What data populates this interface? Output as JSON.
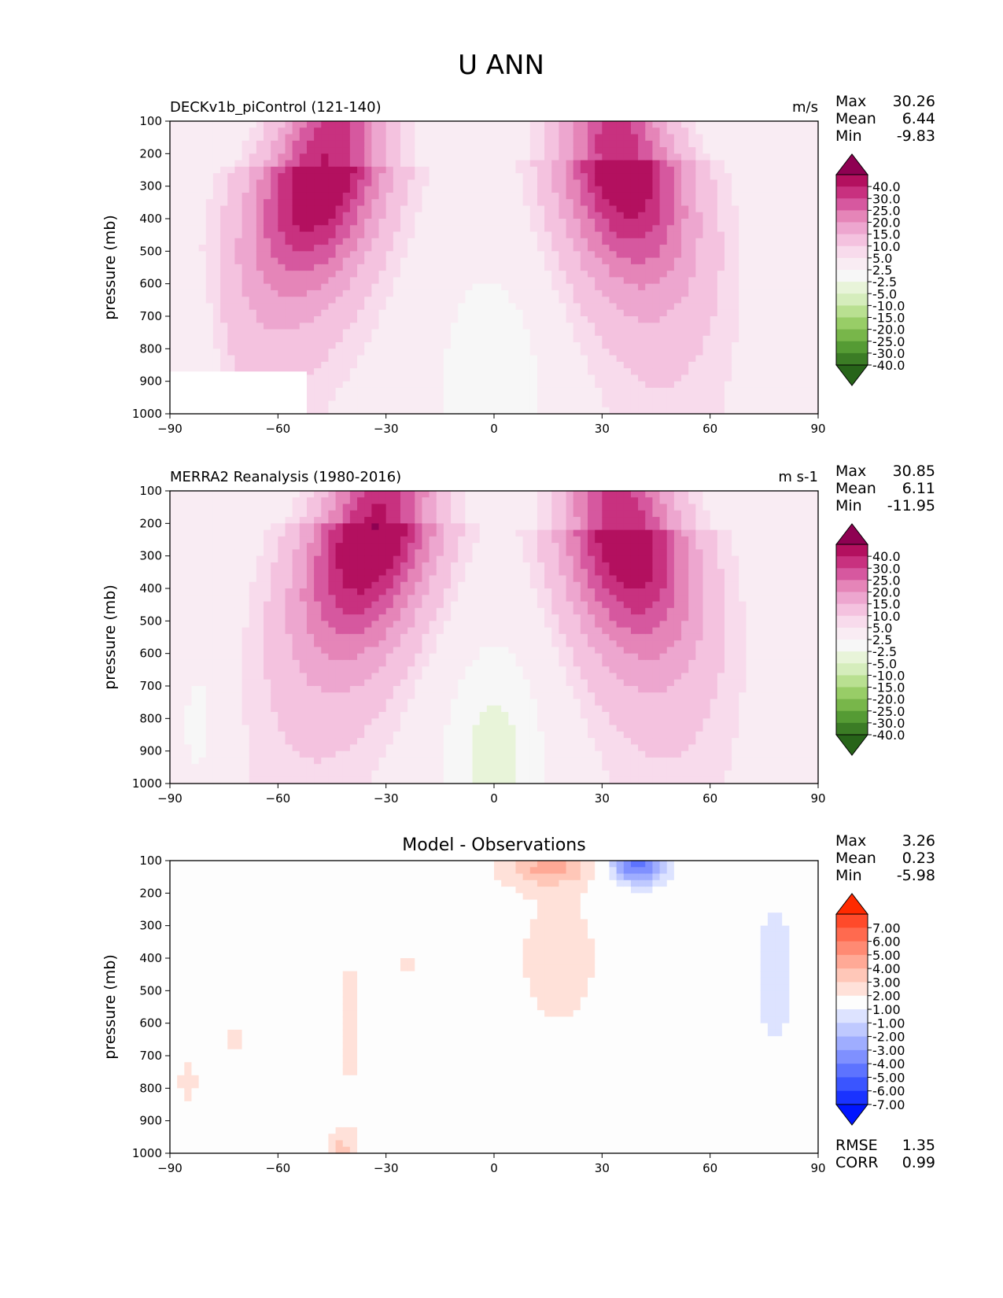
{
  "title": "U ANN",
  "chart_data": [
    {
      "type": "heatmap",
      "title": "DECKv1b_piControl (121-140)",
      "units": "m/s",
      "ylabel": "pressure (mb)",
      "xlim": [
        -90,
        90
      ],
      "ylim": [
        1000,
        100
      ],
      "x_ticks": [
        "−90",
        "−60",
        "−30",
        "0",
        "30",
        "60",
        "90"
      ],
      "y_ticks": [
        "100",
        "200",
        "300",
        "400",
        "500",
        "600",
        "700",
        "800",
        "900",
        "1000"
      ],
      "stats": [
        {
          "label": "Max",
          "value": "30.26"
        },
        {
          "label": "Mean",
          "value": "6.44"
        },
        {
          "label": "Min",
          "value": "-9.83"
        }
      ],
      "colorbar": {
        "labels": [
          "40.0",
          "30.0",
          "25.0",
          "20.0",
          "15.0",
          "10.0",
          "5.0",
          "2.5",
          "-2.5",
          "-5.0",
          "-10.0",
          "-15.0",
          "-20.0",
          "-25.0",
          "-30.0",
          "-40.0"
        ],
        "colors": [
          "#8e0152",
          "#b3105f",
          "#c8317f",
          "#d6589f",
          "#e585b8",
          "#eda6cf",
          "#f4c2df",
          "#f8dbec",
          "#f9ecf3",
          "#f7f7f7",
          "#e8f4d9",
          "#d5edbc",
          "#b9e091",
          "#98cd67",
          "#78b64a",
          "#559b34",
          "#3b7c25",
          "#276419"
        ]
      },
      "field": {
        "jets": [
          {
            "lat": -47,
            "p": 230,
            "max": 30.26
          },
          {
            "lat": 35,
            "p": 210,
            "max": 29
          }
        ],
        "trop_low": -5,
        "mask_south_lat": -52,
        "mask_south_p": 870
      }
    },
    {
      "type": "heatmap",
      "title": "MERRA2 Reanalysis (1980-2016)",
      "units": "m s-1",
      "ylabel": "pressure (mb)",
      "xlim": [
        -90,
        90
      ],
      "ylim": [
        1000,
        100
      ],
      "x_ticks": [
        "−90",
        "−60",
        "−30",
        "0",
        "30",
        "60",
        "90"
      ],
      "y_ticks": [
        "100",
        "200",
        "300",
        "400",
        "500",
        "600",
        "700",
        "800",
        "900",
        "1000"
      ],
      "stats": [
        {
          "label": "Max",
          "value": "30.85"
        },
        {
          "label": "Mean",
          "value": "6.11"
        },
        {
          "label": "Min",
          "value": "-11.95"
        }
      ],
      "colorbar": {
        "labels": [
          "40.0",
          "30.0",
          "25.0",
          "20.0",
          "15.0",
          "10.0",
          "5.0",
          "2.5",
          "-2.5",
          "-5.0",
          "-10.0",
          "-15.0",
          "-20.0",
          "-25.0",
          "-30.0",
          "-40.0"
        ],
        "colors": [
          "#8e0152",
          "#b3105f",
          "#c8317f",
          "#d6589f",
          "#e585b8",
          "#eda6cf",
          "#f4c2df",
          "#f8dbec",
          "#f9ecf3",
          "#f7f7f7",
          "#e8f4d9",
          "#d5edbc",
          "#b9e091",
          "#98cd67",
          "#78b64a",
          "#559b34",
          "#3b7c25",
          "#276419"
        ]
      },
      "field": {
        "jets": [
          {
            "lat": -33,
            "p": 200,
            "max": 30.85
          },
          {
            "lat": 36,
            "p": 210,
            "max": 29.5
          }
        ],
        "trop_low": -6,
        "mask_south_lat": null,
        "mask_south_p": null
      }
    },
    {
      "type": "heatmap",
      "title": "Model - Observations",
      "units": "",
      "ylabel": "pressure (mb)",
      "xlim": [
        -90,
        90
      ],
      "ylim": [
        1000,
        100
      ],
      "x_ticks": [
        "−90",
        "−60",
        "−30",
        "0",
        "30",
        "60",
        "90"
      ],
      "y_ticks": [
        "100",
        "200",
        "300",
        "400",
        "500",
        "600",
        "700",
        "800",
        "900",
        "1000"
      ],
      "stats": [
        {
          "label": "Max",
          "value": "3.26"
        },
        {
          "label": "Mean",
          "value": "0.23"
        },
        {
          "label": "Min",
          "value": "-5.98"
        }
      ],
      "bottom_stats": [
        {
          "label": "RMSE",
          "value": "1.35"
        },
        {
          "label": "CORR",
          "value": "0.99"
        }
      ],
      "colorbar": {
        "labels": [
          "7.00",
          "6.00",
          "5.00",
          "4.00",
          "3.00",
          "2.00",
          "1.00",
          "-1.00",
          "-2.00",
          "-3.00",
          "-4.00",
          "-5.00",
          "-6.00",
          "-7.00"
        ],
        "colors": [
          "#ff2a00",
          "#ff4a2a",
          "#ff6a4f",
          "#ff8a73",
          "#ffa996",
          "#ffc7b8",
          "#ffe1d9",
          "#fdfdfd",
          "#dde3ff",
          "#bfc9ff",
          "#9fadff",
          "#7f90ff",
          "#5d73ff",
          "#3a55ff",
          "#1a33ff",
          "#0015ff"
        ]
      },
      "field": {
        "diff": true
      }
    }
  ]
}
